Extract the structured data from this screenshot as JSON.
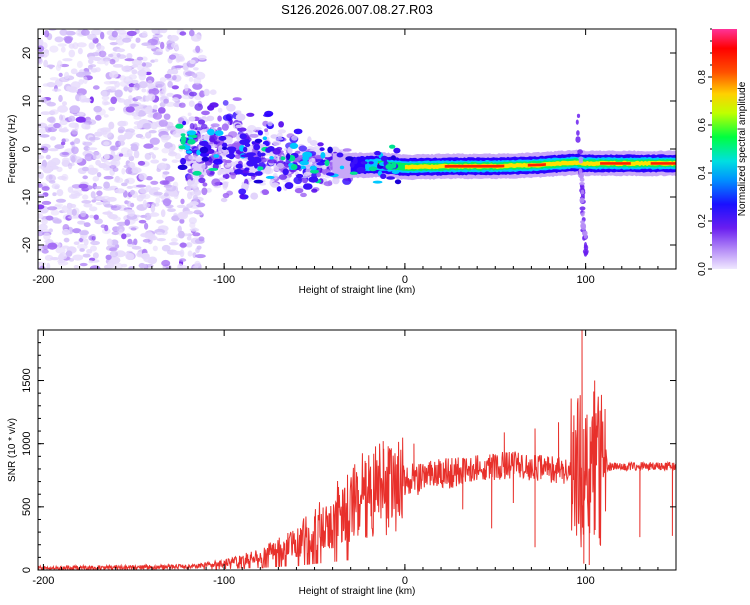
{
  "figure_title": "S126.2026.007.08.27.R03",
  "colors": {
    "snr_line": "#e8302b",
    "axis": "#000000",
    "background": "#ffffff"
  },
  "chart_data": [
    {
      "type": "heatmap",
      "name": "spectrogram",
      "xlabel": "Height of straight line (km)",
      "ylabel": "Frequency (Hz)",
      "xlim": [
        -203,
        150
      ],
      "ylim": [
        -25,
        25
      ],
      "xticks": [
        -200,
        -100,
        0,
        100
      ],
      "xtick_labels": [
        "-200",
        "-100",
        "0",
        "100"
      ],
      "yticks": [
        -20,
        -10,
        0,
        10,
        20
      ],
      "ytick_labels": [
        "-20",
        "-10",
        "0",
        "10",
        "20"
      ],
      "colorbar": {
        "label": "Normalized spectral amplitude",
        "range": [
          0,
          1
        ],
        "ticks": [
          0.0,
          0.2,
          0.4,
          0.6,
          0.8
        ],
        "tick_labels": [
          "0.0",
          "0.2",
          "0.4",
          "0.6",
          "0.8"
        ],
        "colors": [
          "#e8dcff",
          "#8a3cf5",
          "#2a00ff",
          "#00d0ff",
          "#00ff40",
          "#ffff00",
          "#ff8000",
          "#ff0000",
          "#ff30a0"
        ]
      },
      "carrier_track": [
        {
          "x": -125,
          "y": 0.5
        },
        {
          "x": -100,
          "y": -0.5
        },
        {
          "x": -75,
          "y": -2.5
        },
        {
          "x": -50,
          "y": -3.5
        },
        {
          "x": -30,
          "y": -3.5
        },
        {
          "x": -15,
          "y": -3.2
        },
        {
          "x": 0,
          "y": -3.8
        },
        {
          "x": 25,
          "y": -3.6
        },
        {
          "x": 50,
          "y": -3.6
        },
        {
          "x": 75,
          "y": -3.3
        },
        {
          "x": 95,
          "y": -2.8
        },
        {
          "x": 100,
          "y": -3.0
        },
        {
          "x": 125,
          "y": -3.0
        },
        {
          "x": 150,
          "y": -3.0
        }
      ],
      "noise_region": {
        "x_from": -203,
        "x_to": -112,
        "y_from": -25,
        "y_to": 25
      },
      "spike": {
        "x": 97,
        "y_from": -25,
        "y_to": 7
      }
    },
    {
      "type": "line",
      "name": "snr",
      "xlabel": "Height of straight line (km)",
      "ylabel": "SNR (10 * v/v)",
      "xlim": [
        -203,
        150
      ],
      "ylim": [
        0,
        1900
      ],
      "xticks": [
        -200,
        -100,
        0,
        100
      ],
      "xtick_labels": [
        "-200",
        "-100",
        "0",
        "100"
      ],
      "yticks": [
        0,
        500,
        1000,
        1500
      ],
      "ytick_labels": [
        "0",
        "500",
        "1000",
        "1500"
      ],
      "trend": [
        {
          "x": -203,
          "y": 15
        },
        {
          "x": -120,
          "y": 25
        },
        {
          "x": -100,
          "y": 55
        },
        {
          "x": -80,
          "y": 110
        },
        {
          "x": -60,
          "y": 220
        },
        {
          "x": -40,
          "y": 420
        },
        {
          "x": -25,
          "y": 580
        },
        {
          "x": -10,
          "y": 650
        },
        {
          "x": 0,
          "y": 700
        },
        {
          "x": 20,
          "y": 760
        },
        {
          "x": 40,
          "y": 810
        },
        {
          "x": 60,
          "y": 830
        },
        {
          "x": 80,
          "y": 800
        },
        {
          "x": 95,
          "y": 760
        },
        {
          "x": 105,
          "y": 820
        },
        {
          "x": 130,
          "y": 820
        },
        {
          "x": 150,
          "y": 820
        }
      ],
      "dips": [
        {
          "x": 32,
          "y": 480
        },
        {
          "x": 48,
          "y": 330
        },
        {
          "x": 60,
          "y": 530
        },
        {
          "x": 72,
          "y": 180
        },
        {
          "x": 99,
          "y": 50
        },
        {
          "x": 102,
          "y": 40
        },
        {
          "x": 108,
          "y": 200
        },
        {
          "x": 130,
          "y": 260
        },
        {
          "x": 148,
          "y": 270
        }
      ],
      "peaks": [
        {
          "x": -12,
          "y": 1020
        },
        {
          "x": 5,
          "y": 1000
        },
        {
          "x": 55,
          "y": 1090
        },
        {
          "x": 72,
          "y": 1120
        },
        {
          "x": 85,
          "y": 1170
        },
        {
          "x": 98,
          "y": 1900
        },
        {
          "x": 105,
          "y": 1500
        },
        {
          "x": 108,
          "y": 1150
        }
      ]
    }
  ]
}
